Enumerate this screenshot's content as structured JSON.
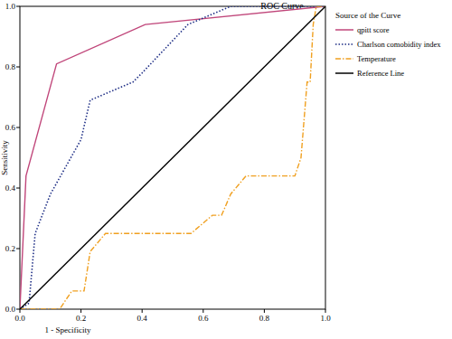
{
  "chart_data": {
    "type": "line",
    "title": "ROC Curve",
    "x_label": "1 - Specificity",
    "y_label": "Sensitivity",
    "legend_title": "Source of the Curve",
    "legend": "right",
    "xlim": [
      0,
      1
    ],
    "ylim": [
      0,
      1
    ],
    "xticks": [
      {
        "value": 0,
        "label": "0.0"
      },
      {
        "value": 0.2,
        "label": "0.2"
      },
      {
        "value": 0.4,
        "label": "0.4"
      },
      {
        "value": 0.6,
        "label": "0.6"
      },
      {
        "value": 0.8,
        "label": "0.8"
      },
      {
        "value": 1,
        "label": "1.0"
      }
    ],
    "yticks": [
      {
        "value": 0,
        "label": "0.0"
      },
      {
        "value": 0.2,
        "label": "0.2"
      },
      {
        "value": 0.4,
        "label": "0.4"
      },
      {
        "value": 0.6,
        "label": "0.6"
      },
      {
        "value": 0.8,
        "label": "0.8"
      },
      {
        "value": 1,
        "label": "1.0"
      }
    ],
    "series": [
      {
        "name": "qpitt score",
        "color": "#c0467a",
        "line_style": "solid",
        "x": [
          0,
          0.02,
          0.12,
          0.41,
          1
        ],
        "values": [
          0,
          0.44,
          0.81,
          0.94,
          1
        ]
      },
      {
        "name": "Charlson comobidity  index",
        "color": "#1f2f86",
        "line_style": "dotted",
        "x": [
          0,
          0.03,
          0.05,
          0.1,
          0.2,
          0.23,
          0.37,
          0.4,
          0.55,
          0.69,
          1
        ],
        "values": [
          0,
          0.02,
          0.25,
          0.38,
          0.56,
          0.69,
          0.75,
          0.78,
          0.94,
          1,
          1
        ]
      },
      {
        "name": "Temperature",
        "color": "#f0a020",
        "line_style": "dashdot",
        "x": [
          0,
          0.13,
          0.17,
          0.21,
          0.23,
          0.28,
          0.56,
          0.63,
          0.66,
          0.69,
          0.74,
          0.9,
          0.92,
          0.94,
          0.95,
          0.96,
          0.97,
          1
        ],
        "values": [
          0,
          0,
          0.06,
          0.06,
          0.19,
          0.25,
          0.25,
          0.31,
          0.31,
          0.38,
          0.44,
          0.44,
          0.5,
          0.75,
          0.75,
          0.94,
          1,
          1
        ]
      },
      {
        "name": "Reference Line",
        "color": "#000000",
        "line_style": "solid",
        "x": [
          0,
          1
        ],
        "values": [
          0,
          1
        ]
      }
    ]
  }
}
